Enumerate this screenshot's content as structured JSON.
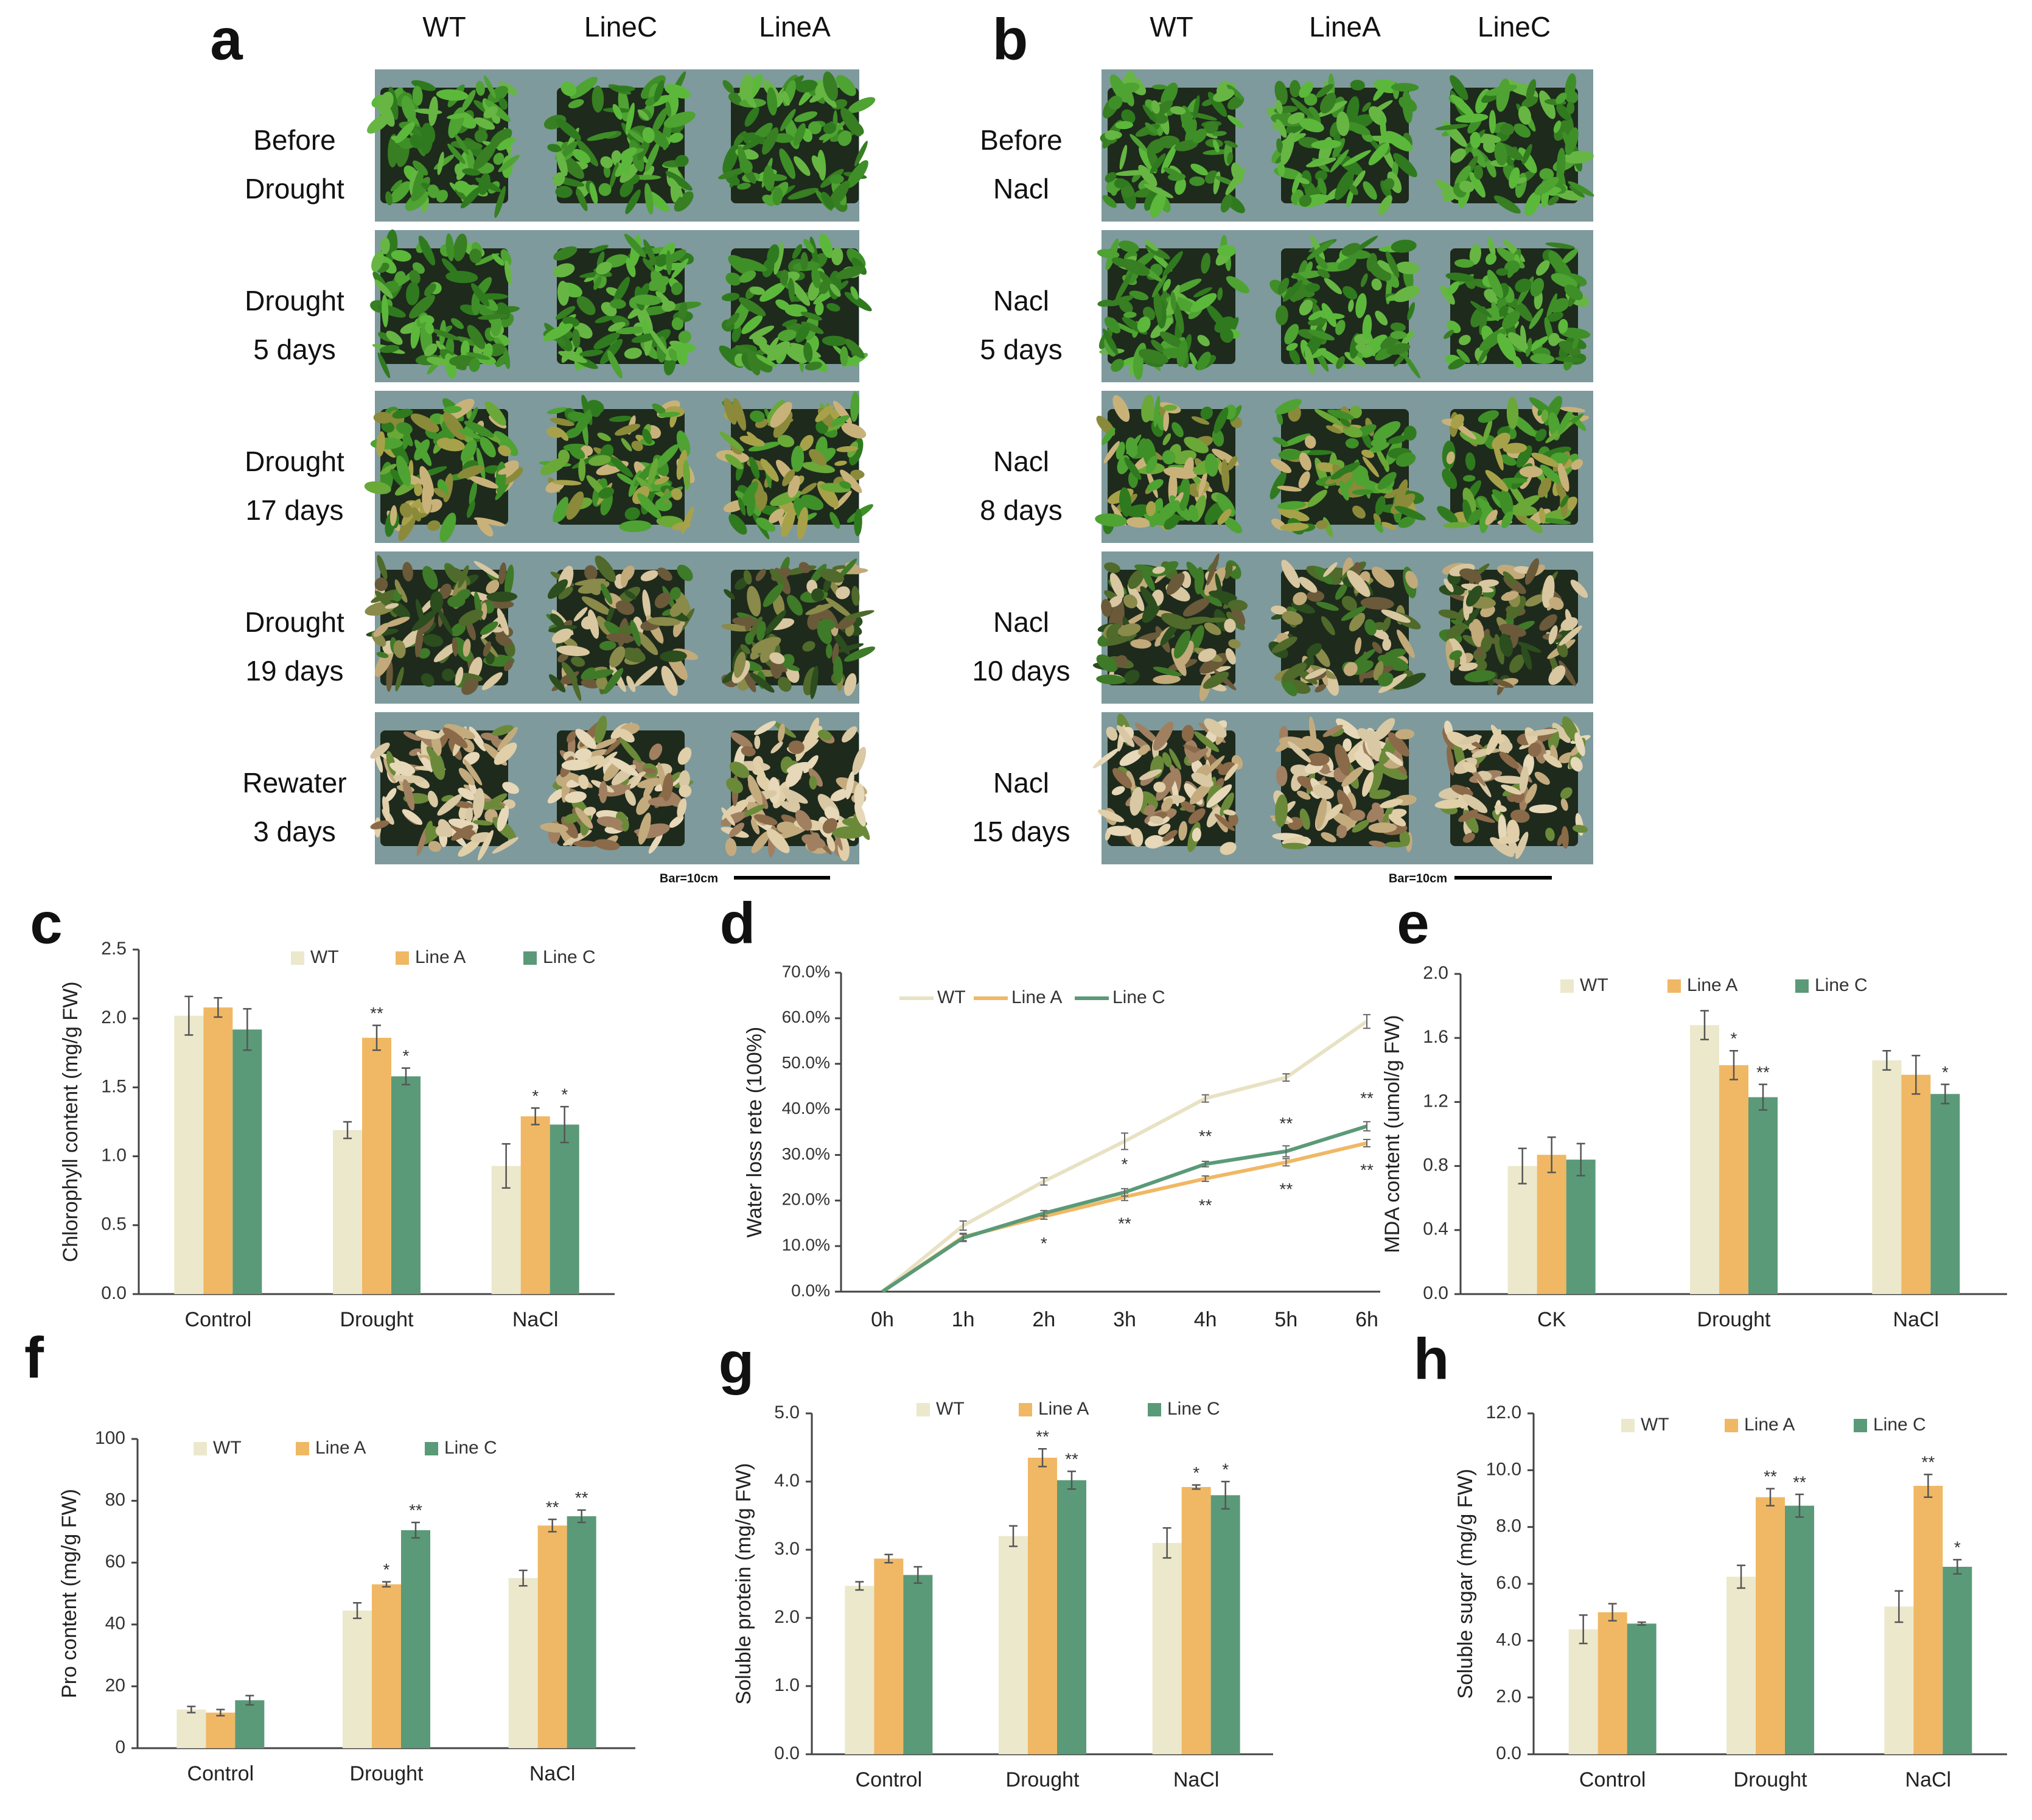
{
  "colors": {
    "wt": "#ece8cc",
    "lineA": "#f0b864",
    "lineC": "#5a9a78",
    "wtLine": "#e8e2c4",
    "grid_bg": "#7e9a9c",
    "plant": "#3f8a2a",
    "plant_dry": "#c9b48a"
  },
  "panel_a": {
    "letter": "a",
    "columns": [
      "WT",
      "LineC",
      "LineA"
    ],
    "rows": [
      {
        "l1": "Before",
        "l2": "Drought",
        "state": "healthy"
      },
      {
        "l1": "Drought",
        "l2": "5 days",
        "state": "healthy"
      },
      {
        "l1": "Drought",
        "l2": "17 days",
        "state": "mild"
      },
      {
        "l1": "Drought",
        "l2": "19 days",
        "state": "severe"
      },
      {
        "l1": "Rewater",
        "l2": "3 days",
        "state": "dry"
      }
    ],
    "scale_bar": "Bar=10cm"
  },
  "panel_b": {
    "letter": "b",
    "columns": [
      "WT",
      "LineA",
      "LineC"
    ],
    "rows": [
      {
        "l1": "Before",
        "l2": "Nacl",
        "state": "healthy"
      },
      {
        "l1": "Nacl",
        "l2": "5 days",
        "state": "healthy"
      },
      {
        "l1": "Nacl",
        "l2": "8 days",
        "state": "mild"
      },
      {
        "l1": "Nacl",
        "l2": "10 days",
        "state": "severe"
      },
      {
        "l1": "Nacl",
        "l2": "15 days",
        "state": "dry"
      }
    ],
    "scale_bar": "Bar=10cm"
  },
  "chart_data": [
    {
      "id": "c",
      "letter": "c",
      "type": "bar",
      "title": "",
      "ylabel": "Chlorophyll content (mg/g FW)",
      "xlabel": "",
      "ylim": [
        0,
        2.5
      ],
      "yticks": [
        "0.0",
        "0.5",
        "1.0",
        "1.5",
        "2.0",
        "2.5"
      ],
      "categories": [
        "Control",
        "Drought",
        "NaCl"
      ],
      "legend": [
        "WT",
        "Line A",
        "Line C"
      ],
      "series": [
        {
          "name": "WT",
          "values": [
            2.02,
            1.19,
            0.93
          ],
          "err": [
            0.14,
            0.06,
            0.16
          ],
          "sig": [
            "",
            "",
            ""
          ]
        },
        {
          "name": "Line A",
          "values": [
            2.08,
            1.86,
            1.29
          ],
          "err": [
            0.07,
            0.09,
            0.06
          ],
          "sig": [
            "",
            "**",
            "*"
          ]
        },
        {
          "name": "Line C",
          "values": [
            1.92,
            1.58,
            1.23
          ],
          "err": [
            0.15,
            0.06,
            0.13
          ],
          "sig": [
            "",
            "*",
            "*"
          ]
        }
      ]
    },
    {
      "id": "d",
      "letter": "d",
      "type": "line",
      "title": "",
      "ylabel": "Water loss rete (100%)",
      "xlabel": "",
      "ylim": [
        0,
        70
      ],
      "yticks": [
        "0.0%",
        "10.0%",
        "20.0%",
        "30.0%",
        "40.0%",
        "50.0%",
        "60.0%",
        "70.0%"
      ],
      "x": [
        "0h",
        "1h",
        "2h",
        "3h",
        "4h",
        "5h",
        "6h"
      ],
      "legend": [
        "WT",
        "Line A",
        "Line C"
      ],
      "series": [
        {
          "name": "WT",
          "values": [
            0,
            14.5,
            24.2,
            33.0,
            42.4,
            47.0,
            59.3
          ],
          "err": [
            0,
            1.0,
            0.8,
            1.8,
            0.8,
            0.8,
            1.5
          ]
        },
        {
          "name": "Line A",
          "values": [
            0,
            12.0,
            16.5,
            20.8,
            24.8,
            28.4,
            32.6
          ],
          "err": [
            0,
            0.8,
            0.6,
            0.8,
            0.6,
            0.8,
            0.8
          ]
        },
        {
          "name": "Line C",
          "values": [
            0,
            11.8,
            17.2,
            21.8,
            28.0,
            30.8,
            36.3
          ],
          "err": [
            0,
            0.8,
            0.6,
            0.8,
            0.6,
            1.2,
            1.0
          ]
        }
      ],
      "sig_above": [
        "",
        "",
        "",
        "*",
        "**",
        "**",
        "**"
      ],
      "sig_below": [
        "",
        "",
        "*",
        "**",
        "**",
        "**",
        "**"
      ]
    },
    {
      "id": "e",
      "letter": "e",
      "type": "bar",
      "title": "",
      "ylabel": "MDA content (umol/g FW)",
      "xlabel": "",
      "ylim": [
        0,
        2.0
      ],
      "yticks": [
        "0.0",
        "0.4",
        "0.8",
        "1.2",
        "1.6",
        "2.0"
      ],
      "categories": [
        "CK",
        "Drought",
        "NaCl"
      ],
      "legend": [
        "WT",
        "Line A",
        "Line C"
      ],
      "series": [
        {
          "name": "WT",
          "values": [
            0.8,
            1.68,
            1.46
          ],
          "err": [
            0.11,
            0.09,
            0.06
          ],
          "sig": [
            "",
            "",
            ""
          ]
        },
        {
          "name": "Line A",
          "values": [
            0.87,
            1.43,
            1.37
          ],
          "err": [
            0.11,
            0.09,
            0.12
          ],
          "sig": [
            "",
            "*",
            ""
          ]
        },
        {
          "name": "Line C",
          "values": [
            0.84,
            1.23,
            1.25
          ],
          "err": [
            0.1,
            0.08,
            0.06
          ],
          "sig": [
            "",
            "**",
            "*"
          ]
        }
      ]
    },
    {
      "id": "f",
      "letter": "f",
      "type": "bar",
      "title": "",
      "ylabel": "Pro content (mg/g FW)",
      "xlabel": "",
      "ylim": [
        0,
        100
      ],
      "yticks": [
        "0",
        "20",
        "40",
        "60",
        "80",
        "100"
      ],
      "categories": [
        "Control",
        "Drought",
        "NaCl"
      ],
      "legend": [
        "WT",
        "Line A",
        "Line C"
      ],
      "series": [
        {
          "name": "WT",
          "values": [
            12.5,
            44.5,
            55.0
          ],
          "err": [
            1.0,
            2.5,
            2.5
          ],
          "sig": [
            "",
            "",
            ""
          ]
        },
        {
          "name": "Line A",
          "values": [
            11.5,
            53.0,
            72.0
          ],
          "err": [
            1.0,
            0.8,
            2.0
          ],
          "sig": [
            "",
            "*",
            "**"
          ]
        },
        {
          "name": "Line C",
          "values": [
            15.5,
            70.5,
            75.0
          ],
          "err": [
            1.5,
            2.5,
            2.0
          ],
          "sig": [
            "",
            "**",
            "**"
          ]
        }
      ]
    },
    {
      "id": "g",
      "letter": "g",
      "type": "bar",
      "title": "",
      "ylabel": "Soluble protein (mg/g FW)",
      "xlabel": "",
      "ylim": [
        0,
        5.0
      ],
      "yticks": [
        "0.0",
        "1.0",
        "2.0",
        "3.0",
        "4.0",
        "5.0"
      ],
      "categories": [
        "Control",
        "Drought",
        "NaCl"
      ],
      "legend": [
        "WT",
        "Line A",
        "Line C"
      ],
      "series": [
        {
          "name": "WT",
          "values": [
            2.47,
            3.2,
            3.1
          ],
          "err": [
            0.06,
            0.15,
            0.22
          ],
          "sig": [
            "",
            "",
            ""
          ]
        },
        {
          "name": "Line A",
          "values": [
            2.87,
            4.35,
            3.92
          ],
          "err": [
            0.06,
            0.13,
            0.03
          ],
          "sig": [
            "",
            "**",
            "*"
          ]
        },
        {
          "name": "Line C",
          "values": [
            2.63,
            4.02,
            3.8
          ],
          "err": [
            0.12,
            0.13,
            0.2
          ],
          "sig": [
            "",
            "**",
            "*"
          ]
        }
      ]
    },
    {
      "id": "h",
      "letter": "h",
      "type": "bar",
      "title": "",
      "ylabel": "Soluble sugar (mg/g FW)",
      "xlabel": "",
      "ylim": [
        0,
        12.0
      ],
      "yticks": [
        "0.0",
        "2.0",
        "4.0",
        "6.0",
        "8.0",
        "10.0",
        "12.0"
      ],
      "categories": [
        "Control",
        "Drought",
        "NaCl"
      ],
      "legend": [
        "WT",
        "Line A",
        "Line C"
      ],
      "series": [
        {
          "name": "WT",
          "values": [
            4.4,
            6.25,
            5.2
          ],
          "err": [
            0.5,
            0.4,
            0.55
          ],
          "sig": [
            "",
            "",
            ""
          ]
        },
        {
          "name": "Line A",
          "values": [
            5.0,
            9.05,
            9.45
          ],
          "err": [
            0.3,
            0.3,
            0.4
          ],
          "sig": [
            "",
            "**",
            "**"
          ]
        },
        {
          "name": "Line C",
          "values": [
            4.6,
            8.75,
            6.6
          ],
          "err": [
            0.05,
            0.4,
            0.25
          ],
          "sig": [
            "",
            "**",
            "*"
          ]
        }
      ]
    }
  ]
}
